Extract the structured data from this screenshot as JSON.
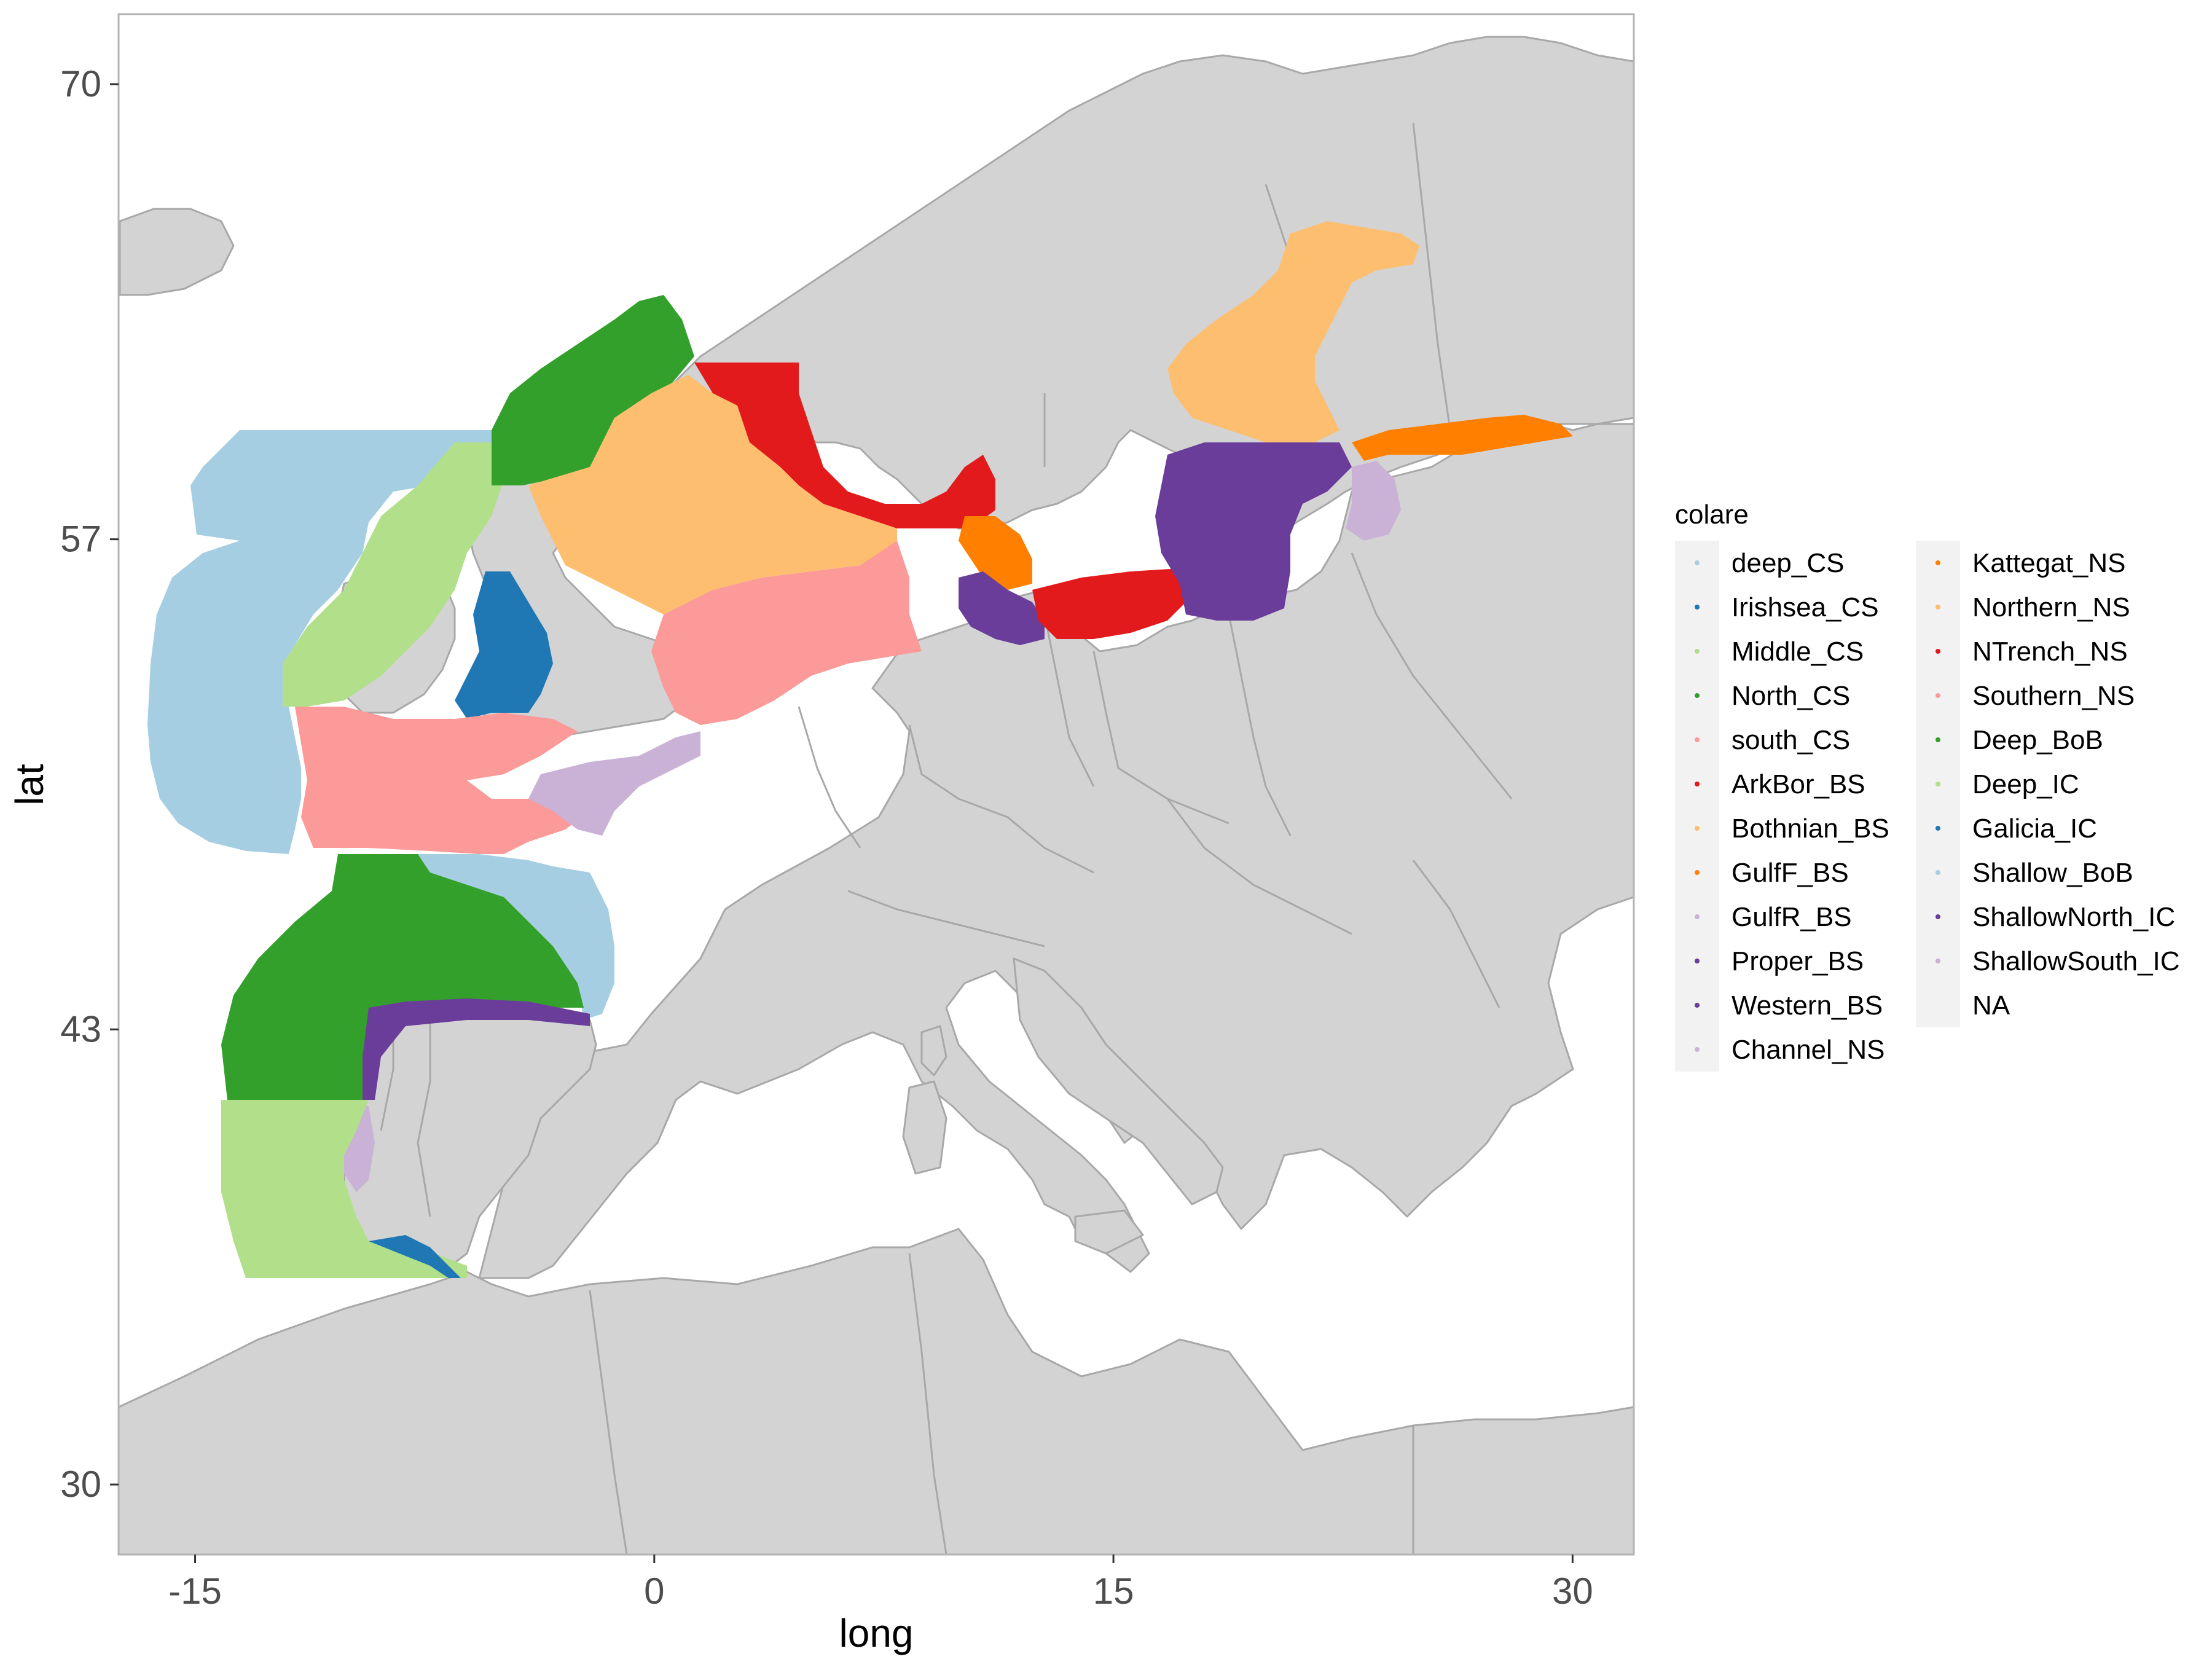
{
  "x_axis": {
    "title": "long",
    "ticks": [
      {
        "value": -15,
        "label": "-15"
      },
      {
        "value": 0,
        "label": "0"
      },
      {
        "value": 15,
        "label": "15"
      },
      {
        "value": 30,
        "label": "30"
      }
    ],
    "range": [
      -17.5,
      32
    ]
  },
  "y_axis": {
    "title": "lat",
    "ticks": [
      {
        "value": 30,
        "label": "30"
      },
      {
        "value": 43,
        "label": "43"
      },
      {
        "value": 57,
        "label": "57"
      },
      {
        "value": 70,
        "label": "70"
      }
    ],
    "range": [
      28,
      72
    ]
  },
  "legend": {
    "title": "colare",
    "columns": [
      [
        {
          "label": "deep_CS",
          "color": "#A6CEE3"
        },
        {
          "label": "Irishsea_CS",
          "color": "#1F78B4"
        },
        {
          "label": "Middle_CS",
          "color": "#B2DF8A"
        },
        {
          "label": "North_CS",
          "color": "#33A02C"
        },
        {
          "label": "south_CS",
          "color": "#FB9A99"
        },
        {
          "label": "ArkBor_BS",
          "color": "#E31A1C"
        },
        {
          "label": "Bothnian_BS",
          "color": "#FDBF6F"
        },
        {
          "label": "GulfF_BS",
          "color": "#FF7F00"
        },
        {
          "label": "GulfR_BS",
          "color": "#CAB2D6"
        },
        {
          "label": "Proper_BS",
          "color": "#6A3D9A"
        },
        {
          "label": "Western_BS",
          "color": "#6A3D9A"
        },
        {
          "label": "Channel_NS",
          "color": "#CAB2D6"
        }
      ],
      [
        {
          "label": "Kattegat_NS",
          "color": "#FF7F00"
        },
        {
          "label": "Northern_NS",
          "color": "#FDBF6F"
        },
        {
          "label": "NTrench_NS",
          "color": "#E31A1C"
        },
        {
          "label": "Southern_NS",
          "color": "#FB9A99"
        },
        {
          "label": "Deep_BoB",
          "color": "#33A02C"
        },
        {
          "label": "Deep_IC",
          "color": "#B2DF8A"
        },
        {
          "label": "Galicia_IC",
          "color": "#1F78B4"
        },
        {
          "label": "Shallow_BoB",
          "color": "#A6CEE3"
        },
        {
          "label": "ShallowNorth_IC",
          "color": "#6A3D9A"
        },
        {
          "label": "ShallowSouth_IC",
          "color": "#CAB2D6"
        },
        {
          "label": "NA",
          "color": "#f0f0f0"
        }
      ]
    ]
  },
  "map_data": {
    "land_color": "#D3D3D3",
    "border_color": "#A8A8A8",
    "sea_color": "#FFFFFF",
    "regions": [
      {
        "name": "deep_CS",
        "color": "#A6CEE3"
      },
      {
        "name": "Middle_CS",
        "color": "#B2DF8A"
      },
      {
        "name": "North_CS",
        "color": "#33A02C"
      },
      {
        "name": "Irishsea_CS",
        "color": "#1F78B4"
      },
      {
        "name": "south_CS",
        "color": "#FB9A99"
      },
      {
        "name": "Northern_NS",
        "color": "#FDBF6F"
      },
      {
        "name": "NTrench_NS",
        "color": "#E31A1C"
      },
      {
        "name": "Southern_NS",
        "color": "#FB9A99"
      },
      {
        "name": "Channel_NS",
        "color": "#CAB2D6"
      },
      {
        "name": "Kattegat_NS",
        "color": "#FF7F00"
      },
      {
        "name": "Western_BS",
        "color": "#6A3D9A"
      },
      {
        "name": "ArkBor_BS",
        "color": "#E31A1C"
      },
      {
        "name": "Proper_BS",
        "color": "#6A3D9A"
      },
      {
        "name": "Bothnian_BS",
        "color": "#FDBF6F"
      },
      {
        "name": "GulfF_BS",
        "color": "#FF7F00"
      },
      {
        "name": "GulfR_BS",
        "color": "#CAB2D6"
      },
      {
        "name": "Shallow_BoB",
        "color": "#A6CEE3"
      },
      {
        "name": "Deep_BoB",
        "color": "#33A02C"
      },
      {
        "name": "ShallowNorth_IC",
        "color": "#6A3D9A"
      },
      {
        "name": "ShallowSouth_IC",
        "color": "#CAB2D6"
      },
      {
        "name": "Deep_IC",
        "color": "#B2DF8A"
      },
      {
        "name": "Galicia_IC",
        "color": "#1F78B4"
      }
    ]
  }
}
